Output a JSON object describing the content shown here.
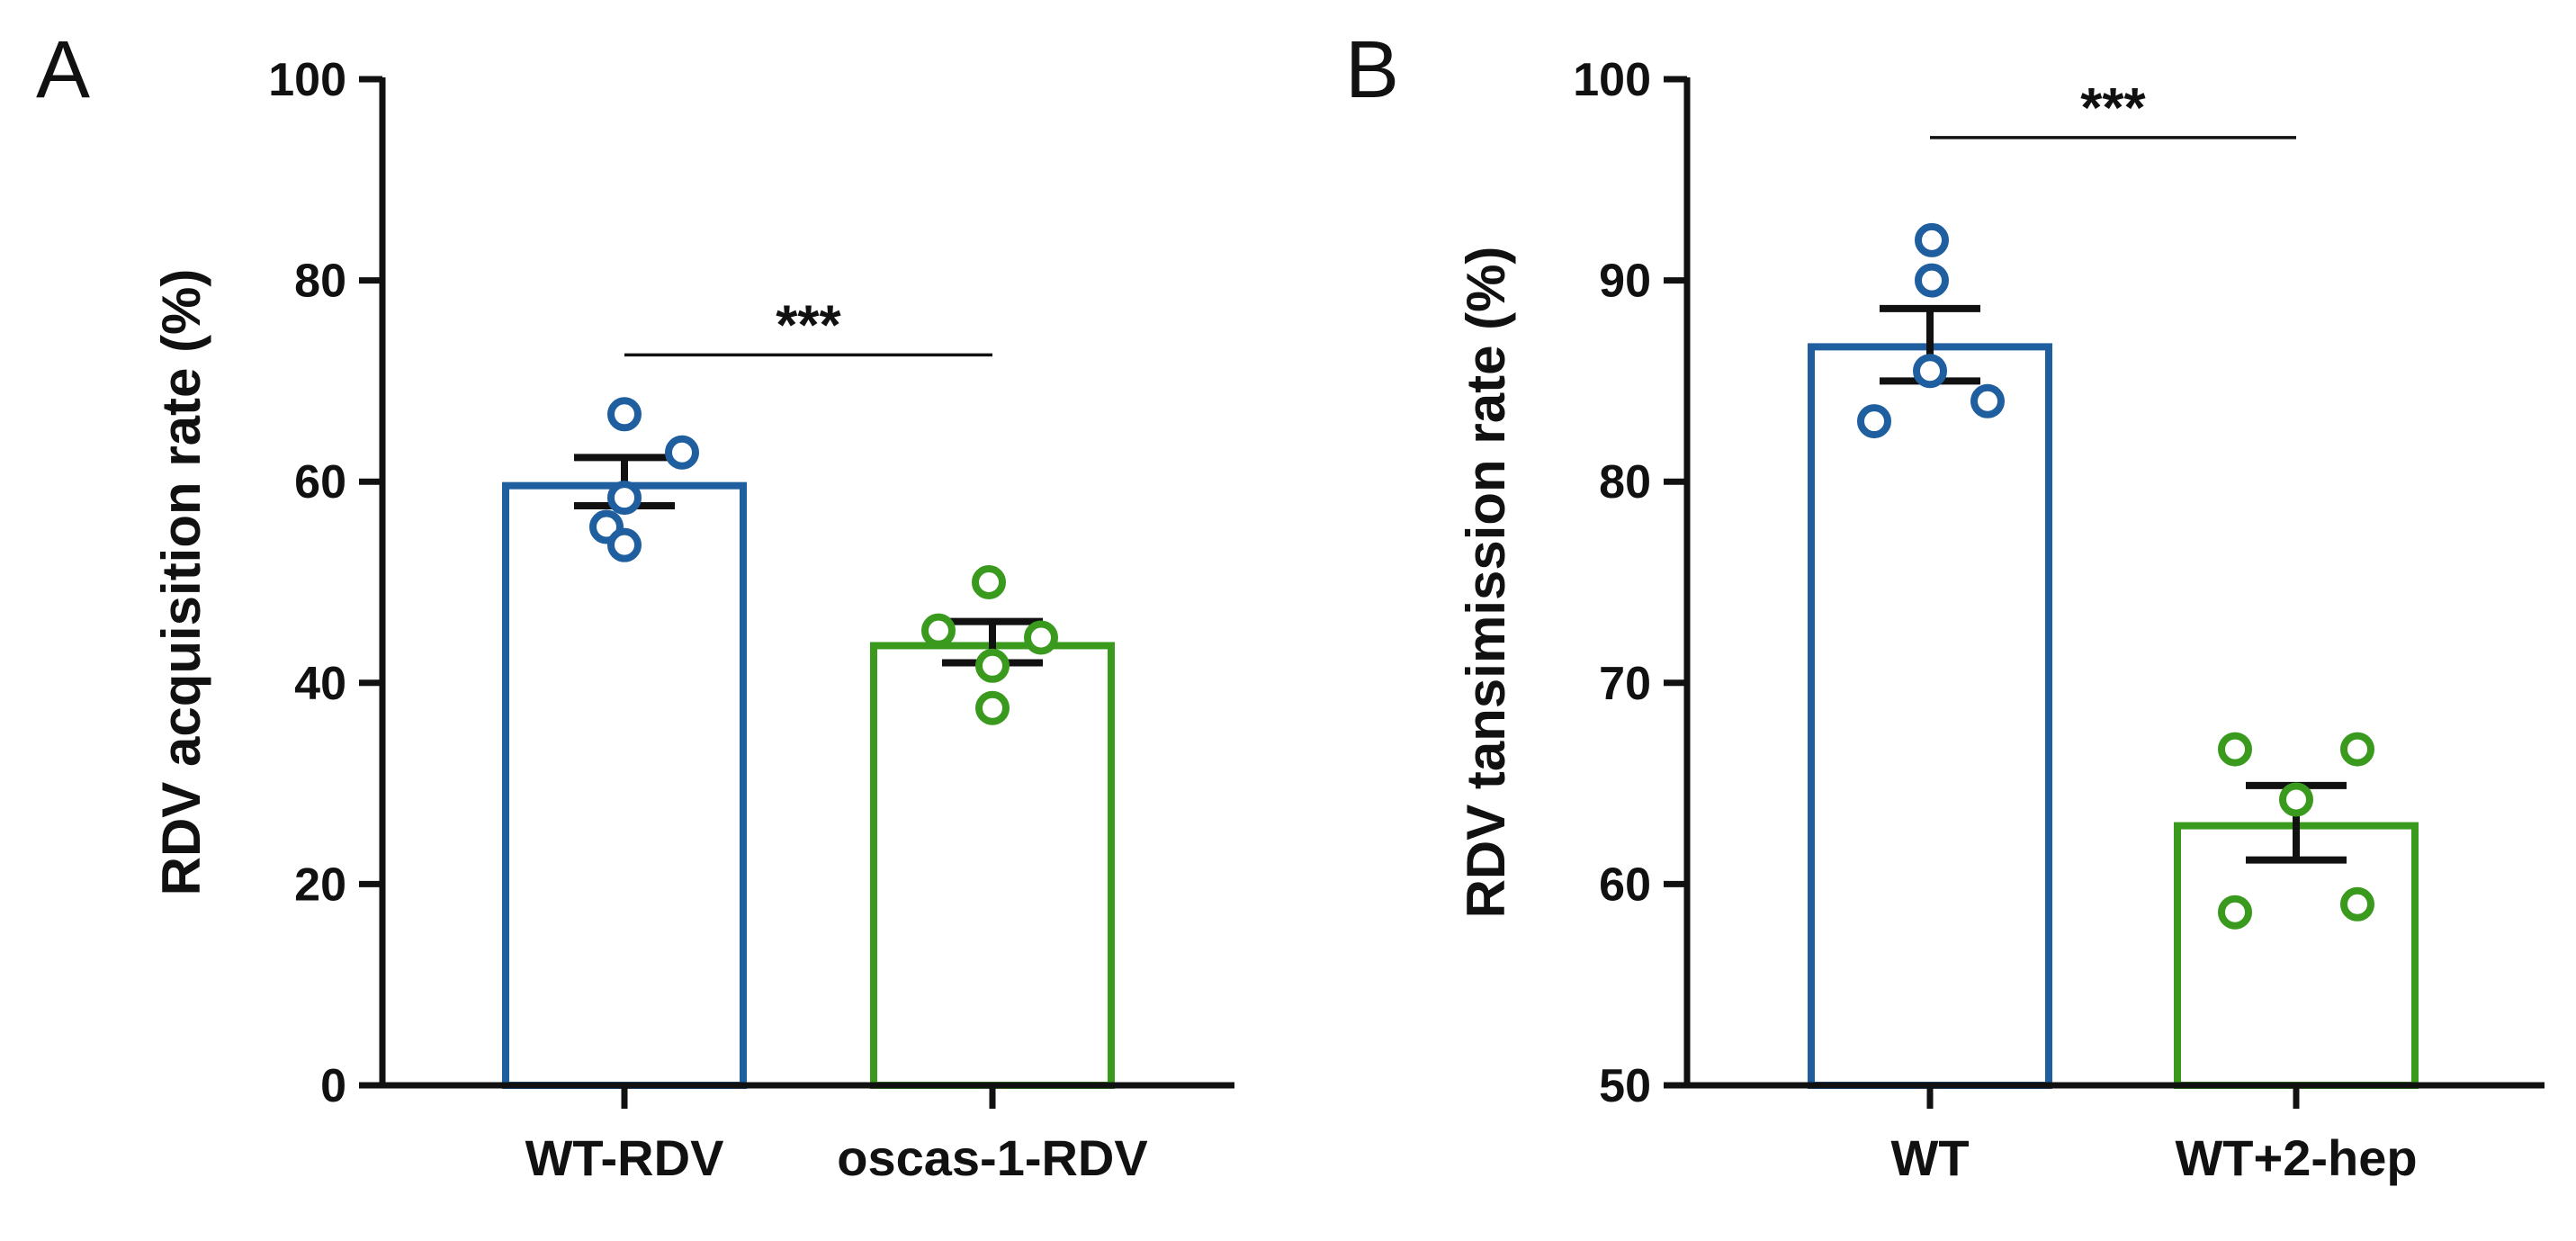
{
  "chart_data": [
    {
      "panel": "A",
      "type": "bar",
      "ylabel": "RDV acquisition rate (%)",
      "ylim": [
        0,
        100
      ],
      "yticks": [
        0,
        20,
        40,
        60,
        80,
        100
      ],
      "categories": [
        "WT-RDV",
        "oscas-1-RDV"
      ],
      "colors": [
        "#1f5fa0",
        "#3a9a1e"
      ],
      "values": [
        59.6,
        43.7
      ],
      "error": [
        {
          "low": 57.6,
          "high": 62.4
        },
        {
          "low": 42.0,
          "high": 46.1
        }
      ],
      "points": [
        [
          66.7,
          62.9,
          58.4,
          55.5,
          53.7
        ],
        [
          50.0,
          45.2,
          44.5,
          41.7,
          37.5
        ]
      ],
      "significance": {
        "label": "***",
        "y": 72.6
      }
    },
    {
      "panel": "B",
      "type": "bar",
      "ylabel": "RDV tansimission rate (%)",
      "ylim": [
        50,
        100
      ],
      "yticks": [
        50,
        60,
        70,
        80,
        90,
        100
      ],
      "categories": [
        "WT",
        "WT+2-hep"
      ],
      "colors": [
        "#1f5fa0",
        "#3a9a1e"
      ],
      "values": [
        86.7,
        62.9
      ],
      "error": [
        {
          "low": 85.0,
          "high": 88.6
        },
        {
          "low": 61.2,
          "high": 64.9
        }
      ],
      "points": [
        [
          92.0,
          90.0,
          85.5,
          84.0,
          83.0
        ],
        [
          66.7,
          66.7,
          64.2,
          59.0,
          58.6
        ]
      ],
      "significance": {
        "label": "***",
        "y": 97.1
      }
    }
  ]
}
